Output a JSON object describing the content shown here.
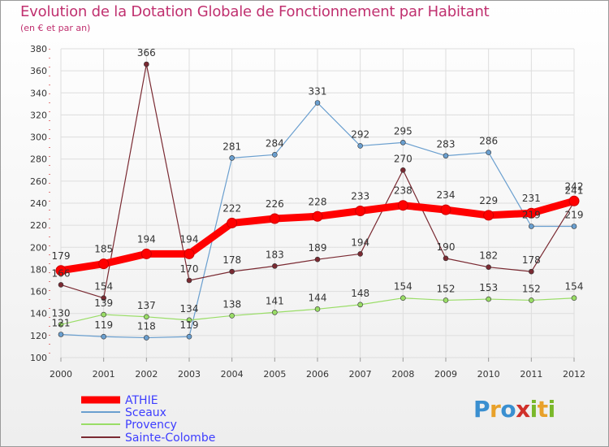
{
  "chart_data": {
    "type": "line",
    "title": "Evolution de la Dotation Globale de Fonctionnement par Habitant",
    "subtitle": "(en € et par an)",
    "xlabel": "",
    "ylabel": "",
    "x": [
      "2000",
      "2001",
      "2002",
      "2003",
      "2004",
      "2005",
      "2006",
      "2007",
      "2008",
      "2009",
      "2010",
      "2011",
      "2012"
    ],
    "ylim": [
      100,
      380
    ],
    "yticks": [
      100,
      120,
      140,
      160,
      180,
      200,
      220,
      240,
      260,
      280,
      300,
      320,
      340,
      360,
      380
    ],
    "grid": true,
    "legend_position": "bottom-left",
    "series": [
      {
        "name": "ATHIE",
        "color": "#ff0000",
        "values": [
          179,
          185,
          194,
          194,
          222,
          226,
          228,
          233,
          238,
          234,
          229,
          231,
          242
        ]
      },
      {
        "name": "Sceaux",
        "color": "#6a9fcf",
        "values": [
          121,
          119,
          118,
          119,
          281,
          284,
          331,
          292,
          295,
          283,
          286,
          219,
          219
        ]
      },
      {
        "name": "Provency",
        "color": "#99dd66",
        "values": [
          130,
          139,
          137,
          134,
          138,
          141,
          144,
          148,
          154,
          152,
          153,
          152,
          154
        ]
      },
      {
        "name": "Sainte-Colombe",
        "color": "#7a2a32",
        "values": [
          166,
          154,
          366,
          170,
          178,
          183,
          189,
          194,
          270,
          190,
          182,
          178,
          241
        ]
      }
    ]
  },
  "logo": {
    "letters": [
      "P",
      "r",
      "o",
      "x",
      "i",
      "t",
      "i"
    ],
    "colors": [
      "#3a8fd0",
      "#e8a12a",
      "#3a8fd0",
      "#d0302a",
      "#7ab82a",
      "#e8a12a",
      "#7ab82a"
    ]
  }
}
